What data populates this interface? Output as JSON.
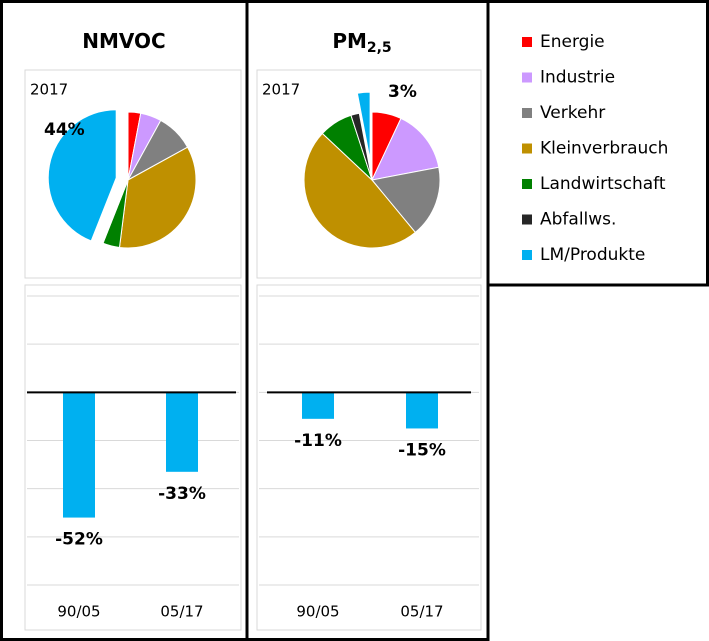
{
  "legend": {
    "labels": [
      "Energie",
      "Industrie",
      "Verkehr",
      "Kleinverbrauch",
      "Landwirtschaft",
      "Abfallws.",
      "LM/Produkte"
    ],
    "colors": [
      "#ff0000",
      "#cc99ff",
      "#808080",
      "#bf9000",
      "#008000",
      "#262626",
      "#00b0f0"
    ]
  },
  "chart_data": [
    {
      "type": "pie",
      "title": "NMVOC",
      "annotation": "2017",
      "values": [
        3,
        5,
        9,
        35,
        4,
        0,
        44
      ],
      "value_labels": [
        null,
        null,
        null,
        null,
        null,
        null,
        "44%"
      ]
    },
    {
      "type": "pie",
      "title": "PM",
      "title_subscript": "2,5",
      "annotation": "2017",
      "values": [
        7,
        15,
        17,
        48,
        8,
        2,
        3
      ],
      "value_labels": [
        null,
        null,
        null,
        null,
        null,
        null,
        "3%"
      ]
    },
    {
      "type": "bar",
      "categories": [
        "90/05",
        "05/17"
      ],
      "values": [
        -52,
        -33
      ],
      "value_labels": [
        "-52%",
        "-33%"
      ],
      "color": "#00b0f0",
      "ylim": [
        -80,
        40
      ],
      "yticks": [
        -80,
        -60,
        -40,
        -20,
        0,
        20,
        40
      ],
      "grid": true
    },
    {
      "type": "bar",
      "categories": [
        "90/05",
        "05/17"
      ],
      "values": [
        -11,
        -15
      ],
      "value_labels": [
        "-11%",
        "-15%"
      ],
      "color": "#00b0f0",
      "ylim": [
        -80,
        40
      ],
      "yticks": [
        -80,
        -60,
        -40,
        -20,
        0,
        20,
        40
      ],
      "grid": true
    }
  ]
}
